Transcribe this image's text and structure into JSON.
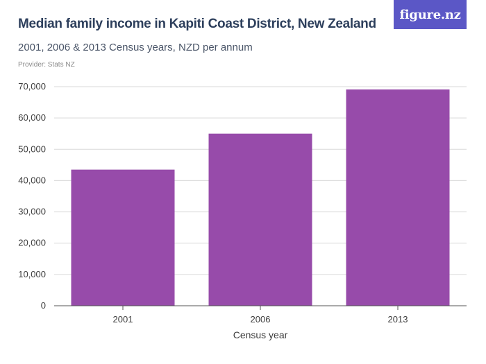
{
  "header": {
    "title": "Median family income in Kapiti Coast District, New Zealand",
    "subtitle": "2001, 2006 & 2013 Census years, NZD per annum",
    "provider": "Provider: Stats NZ",
    "logo_text": "figure.nz"
  },
  "colors": {
    "bar": "#974baa",
    "grid": "#d9d9d9",
    "axis": "#555555",
    "logo_bg": "#5b57c6"
  },
  "chart_data": {
    "type": "bar",
    "title": "Median family income in Kapiti Coast District, New Zealand",
    "subtitle": "2001, 2006 & 2013 Census years, NZD per annum",
    "xlabel": "Census year",
    "ylabel": "",
    "categories": [
      "2001",
      "2006",
      "2013"
    ],
    "values": [
      43500,
      55000,
      69100
    ],
    "ylim": [
      0,
      70000
    ],
    "yticks": [
      0,
      10000,
      20000,
      30000,
      40000,
      50000,
      60000,
      70000
    ],
    "ytick_labels": [
      "0",
      "10,000",
      "20,000",
      "30,000",
      "40,000",
      "50,000",
      "60,000",
      "70,000"
    ],
    "grid": true,
    "legend": "none"
  }
}
